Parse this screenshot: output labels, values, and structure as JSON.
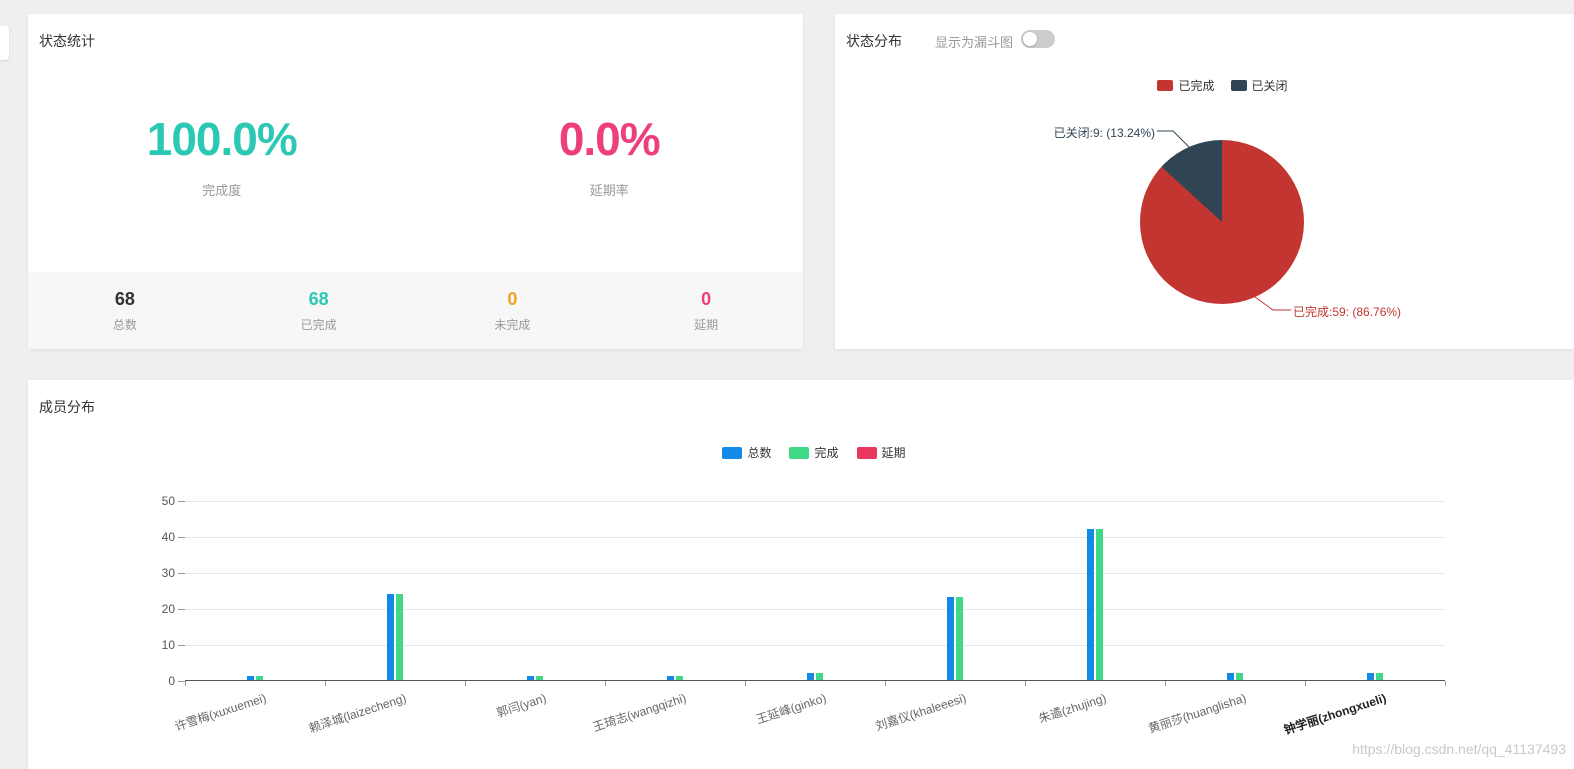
{
  "watermark": "https://blog.csdn.net/qq_41137493",
  "colors": {
    "teal": "#2bc8b4",
    "pink": "#ed3f7e",
    "orange": "#f1a325",
    "dark": "#333333"
  },
  "status_card": {
    "title": "状态统计",
    "metrics": [
      {
        "value": "100.0%",
        "label": "完成度"
      },
      {
        "value": "0.0%",
        "label": "延期率"
      }
    ],
    "counters": [
      {
        "value": "68",
        "label": "总数"
      },
      {
        "value": "68",
        "label": "已完成"
      },
      {
        "value": "0",
        "label": "未完成"
      },
      {
        "value": "0",
        "label": "延期"
      }
    ]
  },
  "distribution_card": {
    "title": "状态分布",
    "funnel_toggle_label": "显示为漏斗图",
    "funnel_toggle_state": "off",
    "legend": [
      {
        "label": "已完成"
      },
      {
        "label": "已关闭"
      }
    ],
    "callouts": [
      {
        "text": "已关闭:9: (13.24%)"
      },
      {
        "text": "已完成:59: (86.76%)"
      }
    ]
  },
  "member_card": {
    "title": "成员分布",
    "legend": [
      {
        "label": "总数"
      },
      {
        "label": "完成"
      },
      {
        "label": "延期"
      }
    ]
  },
  "chart_data": [
    {
      "type": "pie",
      "title": "状态分布",
      "legend_position": "top",
      "slices": [
        {
          "name": "已完成",
          "value": 59,
          "percent": 86.76,
          "color": "#c23531"
        },
        {
          "name": "已关闭",
          "value": 9,
          "percent": 13.24,
          "color": "#2f4554"
        }
      ]
    },
    {
      "type": "bar",
      "title": "成员分布",
      "legend_position": "top",
      "categories": [
        "许雪梅(xuxuemei)",
        "赖泽城(laizecheng)",
        "郭闫(yan)",
        "王琦志(wangqizhi)",
        "王延峰(ginko)",
        "刘嘉仪(khaleeesi)",
        "朱遹(zhujing)",
        "黄丽莎(huanglisha)",
        "钟学丽(zhongxueli)"
      ],
      "highlighted_category": "钟学丽(zhongxueli)",
      "series": [
        {
          "name": "总数",
          "color": "#1389e8",
          "values": [
            1,
            24,
            1,
            1,
            2,
            23,
            42,
            2,
            2
          ]
        },
        {
          "name": "完成",
          "color": "#3fd988",
          "values": [
            1,
            24,
            1,
            1,
            2,
            23,
            42,
            2,
            2
          ]
        },
        {
          "name": "延期",
          "color": "#e9385f",
          "values": [
            0,
            0,
            0,
            0,
            0,
            0,
            0,
            0,
            0
          ]
        }
      ],
      "ylim": [
        0,
        50
      ],
      "yticks": [
        0,
        10,
        20,
        30,
        40,
        50
      ],
      "grid": true
    }
  ]
}
